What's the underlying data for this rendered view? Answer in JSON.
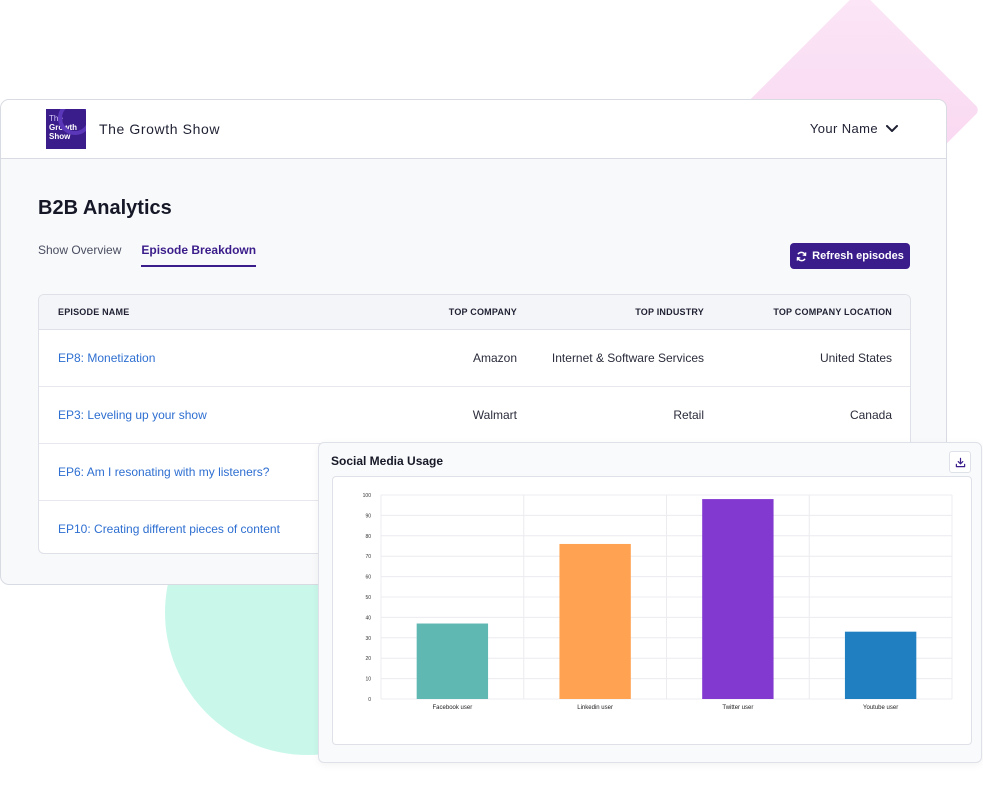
{
  "app": {
    "show_title": "The Growth Show",
    "logo_text": [
      "The",
      "Growth",
      "Show"
    ],
    "user_name": "Your Name"
  },
  "page": {
    "title": "B2B Analytics",
    "tabs": [
      {
        "label": "Show Overview",
        "active": false
      },
      {
        "label": "Episode Breakdown",
        "active": true
      }
    ],
    "refresh_label": "Refresh episodes"
  },
  "table": {
    "headers": [
      "EPISODE NAME",
      "TOP COMPANY",
      "TOP INDUSTRY",
      "TOP COMPANY LOCATION"
    ],
    "rows": [
      {
        "episode": "EP8: Monetization",
        "company": "Amazon",
        "industry": "Internet & Software Services",
        "location": "United States"
      },
      {
        "episode": "EP3: Leveling up your show",
        "company": "Walmart",
        "industry": "Retail",
        "location": "Canada"
      },
      {
        "episode": "EP6: Am I resonating with my listeners?",
        "company": "",
        "industry": "",
        "location": ""
      },
      {
        "episode": "EP10: Creating different pieces of content",
        "company": "",
        "industry": "",
        "location": ""
      }
    ]
  },
  "chart_card": {
    "title": "Social Media Usage"
  },
  "chart_data": {
    "type": "bar",
    "categories": [
      "Facebook user",
      "Linkedin user",
      "Twitter user",
      "Youtube user"
    ],
    "values": [
      37,
      76,
      98,
      33
    ],
    "colors": [
      "#5fb8b2",
      "#ffa352",
      "#8239d0",
      "#1f7fc1"
    ],
    "ylim": [
      0,
      100
    ],
    "yticks": [
      0,
      10,
      20,
      30,
      40,
      50,
      60,
      70,
      80,
      90,
      100
    ],
    "grid": true,
    "title": "",
    "xlabel": "",
    "ylabel": ""
  },
  "colors": {
    "accent": "#3a1c8a",
    "link": "#2e6fd1"
  }
}
